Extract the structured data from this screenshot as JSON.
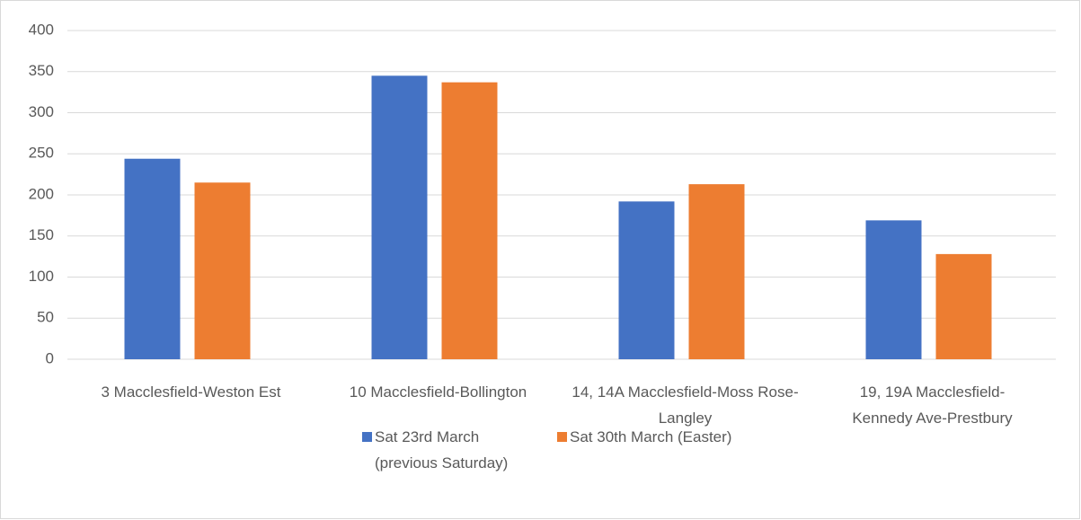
{
  "chart_data": {
    "type": "bar",
    "categories": [
      "3 Macclesfield-Weston Est",
      "10 Macclesfield-Bollington",
      "14, 14A Macclesfield-Moss Rose-Langley",
      "19, 19A Macclesfield-Kennedy Ave-Prestbury"
    ],
    "series": [
      {
        "name": "Sat 23rd March (previous Saturday)",
        "color": "#4472c4",
        "values": [
          244,
          345,
          192,
          169
        ]
      },
      {
        "name": "Sat 30th March (Easter)",
        "color": "#ed7d31",
        "values": [
          215,
          337,
          213,
          128
        ]
      }
    ],
    "ylim": [
      0,
      400
    ],
    "yticks": [
      0,
      50,
      100,
      150,
      200,
      250,
      300,
      350,
      400
    ],
    "grid": true,
    "legend": "bottom"
  }
}
